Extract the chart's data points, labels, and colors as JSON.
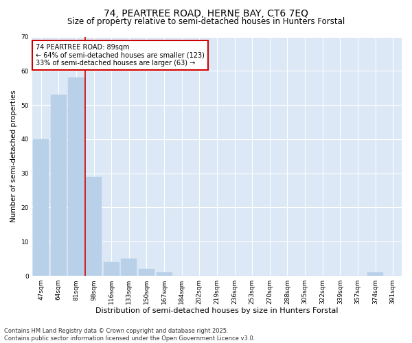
{
  "title1": "74, PEARTREE ROAD, HERNE BAY, CT6 7EQ",
  "title2": "Size of property relative to semi-detached houses in Hunters Forstal",
  "xlabel": "Distribution of semi-detached houses by size in Hunters Forstal",
  "ylabel": "Number of semi-detached properties",
  "categories": [
    "47sqm",
    "64sqm",
    "81sqm",
    "98sqm",
    "116sqm",
    "133sqm",
    "150sqm",
    "167sqm",
    "184sqm",
    "202sqm",
    "219sqm",
    "236sqm",
    "253sqm",
    "270sqm",
    "288sqm",
    "305sqm",
    "322sqm",
    "339sqm",
    "357sqm",
    "374sqm",
    "391sqm"
  ],
  "values": [
    40,
    53,
    58,
    29,
    4,
    5,
    2,
    1,
    0,
    0,
    0,
    0,
    0,
    0,
    0,
    0,
    0,
    0,
    0,
    1,
    0
  ],
  "bar_color": "#b8d0e8",
  "bar_edge_color": "#b8d0e8",
  "vline_x": 2.5,
  "vline_color": "#cc0000",
  "ylim": [
    0,
    70
  ],
  "yticks": [
    0,
    10,
    20,
    30,
    40,
    50,
    60,
    70
  ],
  "annotation_title": "74 PEARTREE ROAD: 89sqm",
  "annotation_line1": "← 64% of semi-detached houses are smaller (123)",
  "annotation_line2": "33% of semi-detached houses are larger (63) →",
  "annotation_box_color": "#cc0000",
  "plot_bg_color": "#dce8f5",
  "fig_bg_color": "#ffffff",
  "footer1": "Contains HM Land Registry data © Crown copyright and database right 2025.",
  "footer2": "Contains public sector information licensed under the Open Government Licence v3.0.",
  "grid_color": "#ffffff",
  "title1_fontsize": 10,
  "title2_fontsize": 8.5,
  "xlabel_fontsize": 8,
  "ylabel_fontsize": 7.5,
  "tick_fontsize": 6.5,
  "annotation_fontsize": 7,
  "footer_fontsize": 6
}
